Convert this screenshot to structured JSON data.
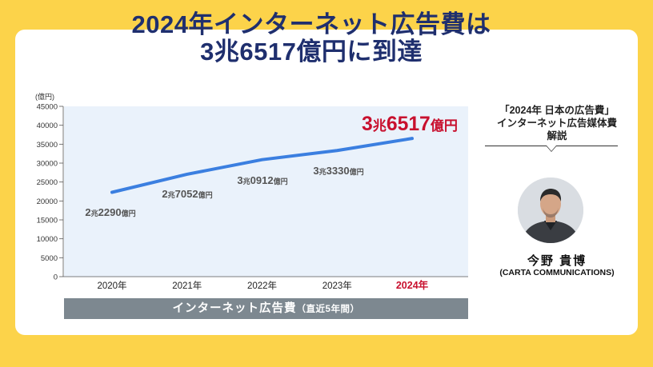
{
  "title": {
    "line1": "2024年インターネット広告費は",
    "line2": "3兆6517億円に到達"
  },
  "footer": {
    "main": "インターネット広告費",
    "sub": "（直近5年間）"
  },
  "side": {
    "heading_line1": "「2024年 日本の広告費」",
    "heading_line2": "インターネット広告媒体費",
    "heading_line3": "解説",
    "person_name": "今野 貴博",
    "person_org": "(CARTA COMMUNICATIONS)"
  },
  "colors": {
    "background": "#fcd34a",
    "title": "#1f2f6e",
    "line": "#3b7fe0",
    "plot_bg": "#eaf2fb",
    "highlight": "#c8102e",
    "footer_bar": "#7d8890"
  },
  "chart_data": {
    "type": "line",
    "unit_label": "(億円)",
    "categories": [
      "2020年",
      "2021年",
      "2022年",
      "2023年",
      "2024年"
    ],
    "values": [
      22290,
      27052,
      30912,
      33330,
      36517
    ],
    "ylim": [
      0,
      45000
    ],
    "yticks": [
      0,
      5000,
      10000,
      15000,
      20000,
      25000,
      30000,
      35000,
      40000,
      45000
    ],
    "grid": false,
    "highlight_index": 4,
    "data_labels": [
      {
        "big": "2",
        "cho": "兆",
        "num": "2290",
        "unit": "億円"
      },
      {
        "big": "2",
        "cho": "兆",
        "num": "7052",
        "unit": "億円"
      },
      {
        "big": "3",
        "cho": "兆",
        "num": "0912",
        "unit": "億円"
      },
      {
        "big": "3",
        "cho": "兆",
        "num": "3330",
        "unit": "億円"
      },
      {
        "big": "3",
        "cho": "兆",
        "num": "6517",
        "unit": "億円"
      }
    ]
  }
}
